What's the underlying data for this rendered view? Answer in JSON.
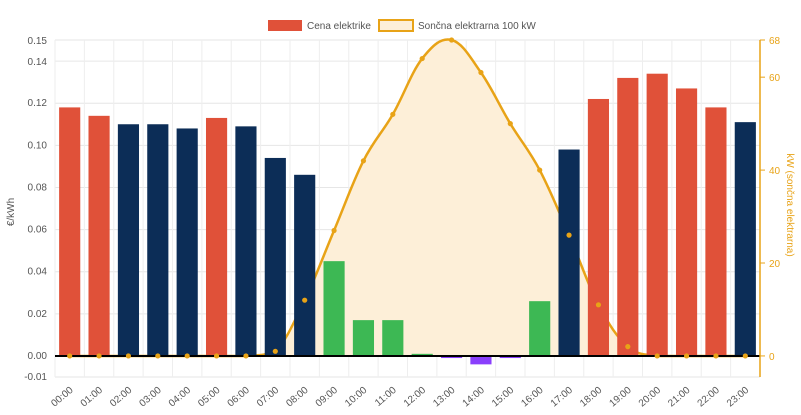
{
  "chart_data": {
    "type": "bar",
    "categories": [
      "00:00",
      "01:00",
      "02:00",
      "03:00",
      "04:00",
      "05:00",
      "06:00",
      "07:00",
      "08:00",
      "09:00",
      "10:00",
      "11:00",
      "12:00",
      "13:00",
      "14:00",
      "15:00",
      "16:00",
      "17:00",
      "18:00",
      "19:00",
      "20:00",
      "21:00",
      "22:00",
      "23:00"
    ],
    "series": [
      {
        "name": "Cena elektrike",
        "axis": "left",
        "values": [
          0.118,
          0.114,
          0.11,
          0.11,
          0.108,
          0.113,
          0.109,
          0.094,
          0.086,
          0.045,
          0.017,
          0.017,
          0.001,
          -0.001,
          -0.004,
          -0.001,
          0.026,
          0.098,
          0.122,
          0.132,
          0.134,
          0.127,
          0.118,
          0.111
        ],
        "bar_colors": [
          "#e05139",
          "#e05139",
          "#0c2d57",
          "#0c2d57",
          "#0c2d57",
          "#e05139",
          "#0c2d57",
          "#0c2d57",
          "#0c2d57",
          "#3db854",
          "#3db854",
          "#3db854",
          "#3db854",
          "#8a3ffc",
          "#8a3ffc",
          "#8a3ffc",
          "#3db854",
          "#0c2d57",
          "#e05139",
          "#e05139",
          "#e05139",
          "#e05139",
          "#e05139",
          "#0c2d57"
        ]
      },
      {
        "name": "Sončna elektrarna 100 kW",
        "axis": "right",
        "type": "area",
        "values": [
          0,
          0,
          0,
          0,
          0,
          0,
          0,
          1,
          12,
          27,
          42,
          52,
          64,
          68,
          61,
          50,
          40,
          26,
          11,
          2,
          0,
          0,
          0,
          0
        ]
      }
    ],
    "ylabel": "€/kWh",
    "y2label": "kW (sončna elektrarna)",
    "ylim": [
      -0.01,
      0.15
    ],
    "y2lim": [
      0,
      68
    ],
    "yticks": [
      "0.15",
      "0.14",
      "0.12",
      "0.10",
      "0.08",
      "0.06",
      "0.04",
      "0.02",
      "0.00",
      "-0.01"
    ],
    "ytick_values": [
      0.15,
      0.14,
      0.12,
      0.1,
      0.08,
      0.06,
      0.04,
      0.02,
      0.0,
      -0.01
    ],
    "y2ticks": [
      "68",
      "60",
      "40",
      "20",
      "0"
    ],
    "y2tick_values": [
      68,
      60,
      40,
      20,
      0
    ],
    "legend_position": "top",
    "grid": true,
    "colors": {
      "expensive": "#e05139",
      "normal": "#0c2d57",
      "cheap": "#3db854",
      "negative": "#8a3ffc",
      "solar_line": "#e8a317",
      "solar_fill": "#fdefd8"
    }
  }
}
